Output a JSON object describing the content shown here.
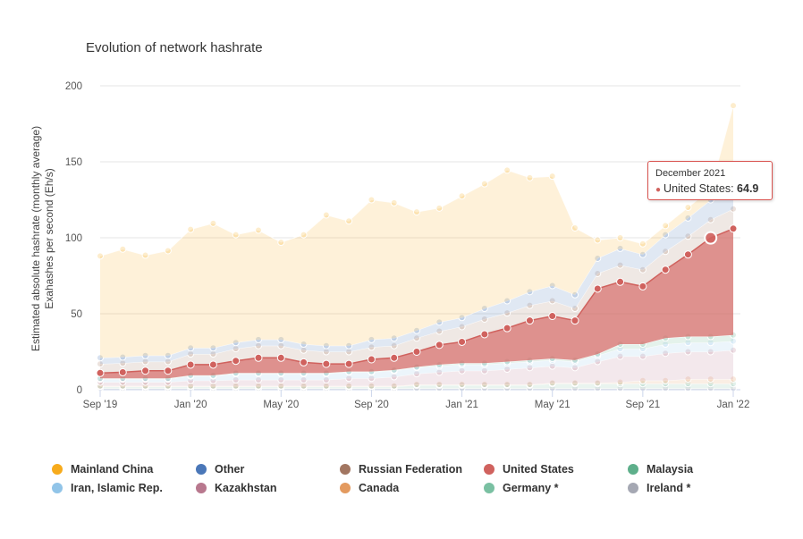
{
  "chart_data": {
    "type": "area",
    "title": "Evolution of network hashrate",
    "ylabel": "Estimated absolute hashrate (monthly average)",
    "ylabel2": "Exahashes per second (Eh/s)",
    "xlabel": "",
    "ylim": [
      0,
      200
    ],
    "yticks": [
      "0",
      "50",
      "100",
      "150",
      "200"
    ],
    "xtick_labels": [
      "Sep '19",
      "Jan '20",
      "May '20",
      "Sep '20",
      "Jan '21",
      "May '21",
      "Sep '21",
      "Jan '22"
    ],
    "x": [
      "Sep 2019",
      "Oct 2019",
      "Nov 2019",
      "Dec 2019",
      "Jan 2020",
      "Feb 2020",
      "Mar 2020",
      "Apr 2020",
      "May 2020",
      "Jun 2020",
      "Jul 2020",
      "Aug 2020",
      "Sep 2020",
      "Oct 2020",
      "Nov 2020",
      "Dec 2020",
      "Jan 2021",
      "Feb 2021",
      "Mar 2021",
      "Apr 2021",
      "May 2021",
      "Jun 2021",
      "Jul 2021",
      "Aug 2021",
      "Sep 2021",
      "Oct 2021",
      "Nov 2021",
      "Dec 2021",
      "Jan 2022"
    ],
    "stacking": "normal",
    "series": [
      {
        "name": "Ireland *",
        "color": "#a5a8b3",
        "values": [
          1,
          1,
          1,
          1,
          1,
          1,
          1,
          1,
          1,
          1,
          1,
          1,
          1,
          1,
          1,
          1,
          1,
          1,
          1,
          1,
          1,
          1,
          1,
          1,
          1,
          1,
          1,
          1,
          1
        ]
      },
      {
        "name": "Germany *",
        "color": "#7ac0a2",
        "values": [
          1,
          1,
          1,
          1,
          1,
          1,
          1,
          1,
          1,
          1,
          1,
          1,
          1,
          1,
          2,
          2,
          2,
          2,
          2,
          2,
          3,
          3,
          3,
          3,
          3,
          3,
          3,
          3,
          3
        ]
      },
      {
        "name": "Canada",
        "color": "#e39a5f",
        "values": [
          0.5,
          0.5,
          0.5,
          0.5,
          0.5,
          0.5,
          0.5,
          0.5,
          0.5,
          0.5,
          0.5,
          0.5,
          0.5,
          0.5,
          0.5,
          0.5,
          0.5,
          0.5,
          0.5,
          0.5,
          0.5,
          0.5,
          0.5,
          1,
          2,
          2,
          3,
          3,
          3
        ]
      },
      {
        "name": "Kazakhstan",
        "color": "#b8788e",
        "values": [
          2.5,
          2.5,
          2.5,
          2.5,
          3.5,
          3.5,
          4,
          4,
          4,
          4,
          4,
          5,
          5,
          6,
          7,
          8,
          9,
          9,
          10,
          11,
          11,
          10,
          14,
          17,
          16,
          18,
          18,
          18,
          19
        ]
      },
      {
        "name": "Iran, Islamic Rep.",
        "color": "#91c4e8",
        "values": [
          2,
          2,
          2,
          2,
          3,
          3,
          4,
          4,
          4,
          4,
          4,
          4,
          4,
          4,
          4,
          4,
          4,
          4,
          4,
          4,
          4,
          4,
          4,
          5,
          5,
          6,
          6,
          6,
          6
        ]
      },
      {
        "name": "Malaysia",
        "color": "#5eaf8b",
        "values": [
          0.5,
          0.5,
          0.5,
          0.5,
          0.5,
          0.5,
          0.5,
          0.5,
          0.5,
          0.5,
          0.5,
          0.5,
          0.5,
          0.5,
          0.5,
          1,
          1,
          1,
          1,
          1,
          1,
          1,
          1,
          3,
          3,
          4,
          4,
          4,
          4
        ]
      },
      {
        "name": "United States",
        "color": "#d0625e",
        "values": [
          3.5,
          4,
          5,
          5,
          7,
          7,
          8,
          10,
          10,
          7,
          6,
          5,
          8,
          8,
          10,
          13,
          14,
          19,
          22,
          26,
          28,
          26,
          43,
          41,
          38,
          45,
          54,
          64.9,
          70
        ]
      },
      {
        "name": "Russian Federation",
        "color": "#a27661",
        "values": [
          6,
          6,
          6,
          6,
          7,
          7,
          8,
          8,
          8,
          8,
          8,
          8,
          8,
          8,
          9,
          9,
          10,
          10,
          10,
          10,
          10,
          8,
          10,
          11,
          11,
          12,
          12,
          12,
          13
        ]
      },
      {
        "name": "Other",
        "color": "#4a77b8",
        "values": [
          4,
          4,
          4,
          4,
          4,
          4,
          4,
          4,
          4,
          4,
          4,
          4,
          5,
          5,
          5,
          6,
          6,
          7,
          8,
          9,
          10,
          9,
          10,
          11,
          10,
          11,
          12,
          13,
          13
        ]
      },
      {
        "name": "Mainland China",
        "color": "#f7ab1c",
        "values": [
          67,
          71,
          66,
          69,
          78,
          82,
          71,
          72,
          64,
          72,
          86,
          82,
          92,
          89,
          78,
          75,
          80,
          82,
          86,
          75,
          72,
          44,
          12,
          7,
          7,
          6,
          7,
          7,
          55
        ]
      }
    ],
    "tooltip": {
      "date": "December 2021",
      "series": "United States",
      "value": "64.9",
      "value_label": "United States: "
    },
    "legend": {
      "placement": "bottom",
      "items": [
        {
          "name": "Mainland China",
          "color": "#f7ab1c"
        },
        {
          "name": "Other",
          "color": "#4a77b8"
        },
        {
          "name": "Russian Federation",
          "color": "#a27661"
        },
        {
          "name": "United States",
          "color": "#d0625e"
        },
        {
          "name": "Malaysia",
          "color": "#5eaf8b"
        },
        {
          "name": "Iran, Islamic Rep.",
          "color": "#91c4e8"
        },
        {
          "name": "Kazakhstan",
          "color": "#b8788e"
        },
        {
          "name": "Canada",
          "color": "#e39a5f"
        },
        {
          "name": "Germany *",
          "color": "#7ac0a2"
        },
        {
          "name": "Ireland *",
          "color": "#a5a8b3"
        }
      ]
    }
  }
}
